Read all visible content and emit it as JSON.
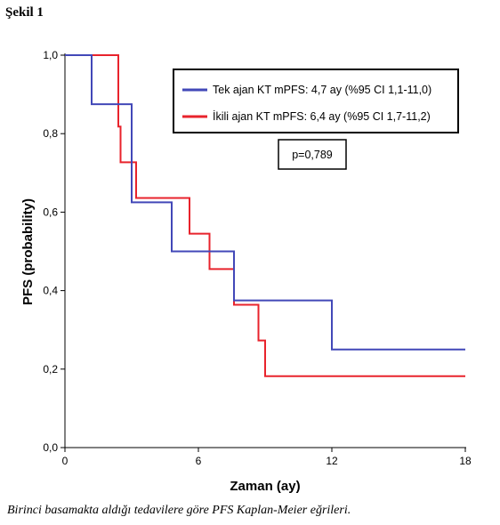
{
  "figure_label": "Şekil 1",
  "caption": "Birinci basamakta aldığı tedavilere göre PFS Kaplan-Meier eğrileri.",
  "chart_data": {
    "type": "line",
    "subtype": "kaplan-meier step",
    "xlabel": "Zaman (ay)",
    "ylabel": "PFS (probability)",
    "xlim": [
      0,
      18
    ],
    "ylim": [
      0,
      1.0
    ],
    "xticks": [
      {
        "value": 0,
        "label": "0"
      },
      {
        "value": 6,
        "label": "6"
      },
      {
        "value": 12,
        "label": "12"
      },
      {
        "value": 18,
        "label": "18"
      }
    ],
    "yticks": [
      {
        "value": 0,
        "label": "0,0"
      },
      {
        "value": 0.2,
        "label": "0,2"
      },
      {
        "value": 0.4,
        "label": "0,4"
      },
      {
        "value": 0.6,
        "label": "0,6"
      },
      {
        "value": 0.8,
        "label": "0,8"
      },
      {
        "value": 1.0,
        "label": "1,0"
      }
    ],
    "grid": false,
    "legend_placement": "top-right",
    "series": [
      {
        "name": "Tek ajan KT mPFS: 4,7 ay (%95 CI 1,1-11,0)",
        "color": "#4248b8",
        "steps": [
          [
            0,
            1.0
          ],
          [
            1.2,
            0.875
          ],
          [
            3.0,
            0.625
          ],
          [
            4.8,
            0.5
          ],
          [
            7.6,
            0.375
          ],
          [
            12.0,
            0.25
          ],
          [
            18.0,
            0.25
          ]
        ]
      },
      {
        "name": "İkili ajan KT mPFS: 6,4 ay (%95 CI 1,7-11,2)",
        "color": "#e8232c",
        "steps": [
          [
            0,
            1.0
          ],
          [
            2.4,
            0.818
          ],
          [
            2.5,
            0.727
          ],
          [
            3.2,
            0.636
          ],
          [
            5.6,
            0.545
          ],
          [
            6.5,
            0.455
          ],
          [
            7.6,
            0.364
          ],
          [
            8.7,
            0.273
          ],
          [
            9.0,
            0.182
          ],
          [
            18.0,
            0.182
          ]
        ]
      }
    ],
    "annotation": "p=0,789"
  }
}
